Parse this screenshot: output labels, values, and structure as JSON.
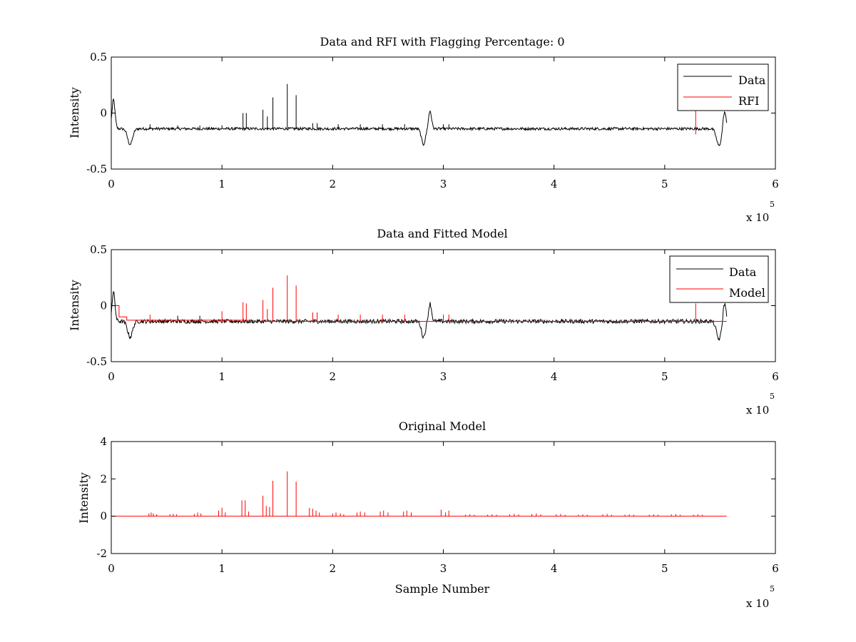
{
  "chart_data": [
    {
      "type": "line",
      "title": "Data and RFI with Flagging Percentage: 0",
      "xlabel": "",
      "ylabel": "Intensity",
      "xlim": [
        0,
        6
      ],
      "ylim": [
        -0.5,
        0.5
      ],
      "x_ticks": [
        "0",
        "1",
        "2",
        "3",
        "4",
        "5",
        "6"
      ],
      "y_ticks": [
        "-0.5",
        "0",
        "0.5"
      ],
      "x_multiplier": {
        "base": "x 10",
        "exponent": "5"
      },
      "legend": {
        "placement": "top-right",
        "entries": [
          {
            "label": "Data",
            "color": "#000000"
          },
          {
            "label": "RFI",
            "color": "#ff0000"
          }
        ]
      },
      "baseline": -0.14,
      "noise": 0.012,
      "x_end": 5.56,
      "dips": [
        {
          "x": 0.02,
          "y": 0.12,
          "width": 0.03
        },
        {
          "x": 0.17,
          "y": -0.28,
          "width": 0.05
        },
        {
          "x": 2.82,
          "y": -0.28,
          "width": 0.04
        },
        {
          "x": 2.88,
          "y": 0.02,
          "width": 0.03
        },
        {
          "x": 5.49,
          "y": -0.29,
          "width": 0.05
        },
        {
          "x": 5.54,
          "y": 0.02,
          "width": 0.03
        }
      ],
      "spikes": [
        {
          "x": 0.35,
          "y": -0.1
        },
        {
          "x": 0.6,
          "y": -0.11
        },
        {
          "x": 0.8,
          "y": -0.11
        },
        {
          "x": 1.0,
          "y": -0.11
        },
        {
          "x": 1.19,
          "y": 0.0
        },
        {
          "x": 1.22,
          "y": 0.0
        },
        {
          "x": 1.37,
          "y": 0.03
        },
        {
          "x": 1.41,
          "y": -0.03
        },
        {
          "x": 1.46,
          "y": 0.14
        },
        {
          "x": 1.59,
          "y": 0.26
        },
        {
          "x": 1.67,
          "y": 0.16
        },
        {
          "x": 1.82,
          "y": -0.09
        },
        {
          "x": 1.86,
          "y": -0.09
        },
        {
          "x": 2.05,
          "y": -0.1
        },
        {
          "x": 2.25,
          "y": -0.1
        },
        {
          "x": 2.45,
          "y": -0.1
        },
        {
          "x": 2.65,
          "y": -0.1
        },
        {
          "x": 3.0,
          "y": -0.1
        },
        {
          "x": 3.05,
          "y": -0.1
        }
      ],
      "rfi": [
        {
          "x": 5.28,
          "y_top": 0.02,
          "y_bottom": -0.19
        }
      ]
    },
    {
      "type": "line",
      "title": "Data and Fitted Model",
      "xlabel": "",
      "ylabel": "Intensity",
      "xlim": [
        0,
        6
      ],
      "ylim": [
        -0.5,
        0.5
      ],
      "x_ticks": [
        "0",
        "1",
        "2",
        "3",
        "4",
        "5",
        "6"
      ],
      "y_ticks": [
        "-0.5",
        "0",
        "0.5"
      ],
      "x_multiplier": {
        "base": "x 10",
        "exponent": "5"
      },
      "legend": {
        "placement": "top-right",
        "entries": [
          {
            "label": "Data",
            "color": "#000000"
          },
          {
            "label": "Model",
            "color": "#ff0000"
          }
        ]
      },
      "baseline": -0.14,
      "noise": 0.018,
      "x_end": 5.56,
      "dips": [
        {
          "x": 0.02,
          "y": 0.12,
          "width": 0.03
        },
        {
          "x": 0.17,
          "y": -0.28,
          "width": 0.05
        },
        {
          "x": 2.82,
          "y": -0.28,
          "width": 0.04
        },
        {
          "x": 2.88,
          "y": 0.02,
          "width": 0.03
        },
        {
          "x": 5.49,
          "y": -0.3,
          "width": 0.05
        },
        {
          "x": 5.54,
          "y": 0.03,
          "width": 0.03
        }
      ],
      "spikes": [
        {
          "x": 0.35,
          "y": -0.08
        },
        {
          "x": 0.6,
          "y": -0.09
        },
        {
          "x": 0.8,
          "y": -0.09
        },
        {
          "x": 1.0,
          "y": -0.05
        },
        {
          "x": 1.19,
          "y": 0.03
        },
        {
          "x": 1.22,
          "y": 0.02
        },
        {
          "x": 1.37,
          "y": 0.05
        },
        {
          "x": 1.41,
          "y": -0.03
        },
        {
          "x": 1.46,
          "y": 0.16
        },
        {
          "x": 1.59,
          "y": 0.27
        },
        {
          "x": 1.67,
          "y": 0.18
        },
        {
          "x": 1.82,
          "y": -0.06
        },
        {
          "x": 1.86,
          "y": -0.06
        },
        {
          "x": 2.05,
          "y": -0.08
        },
        {
          "x": 2.25,
          "y": -0.08
        },
        {
          "x": 2.45,
          "y": -0.08
        },
        {
          "x": 2.65,
          "y": -0.08
        },
        {
          "x": 3.0,
          "y": -0.08
        },
        {
          "x": 3.05,
          "y": -0.08
        },
        {
          "x": 5.28,
          "y": 0.02
        }
      ],
      "model_steps": [
        {
          "x0": 0.0,
          "x1": 0.07,
          "y": 0.0
        },
        {
          "x0": 0.07,
          "x1": 0.14,
          "y": -0.1
        },
        {
          "x0": 0.14,
          "x1": 1.2,
          "y": -0.13
        },
        {
          "x0": 1.2,
          "x1": 2.0,
          "y": -0.14
        },
        {
          "x0": 2.0,
          "x1": 5.56,
          "y": -0.14
        }
      ]
    },
    {
      "type": "line",
      "title": "Original Model",
      "xlabel": "Sample Number",
      "ylabel": "Intensity",
      "xlim": [
        0,
        6
      ],
      "ylim": [
        -2,
        4
      ],
      "x_ticks": [
        "0",
        "1",
        "2",
        "3",
        "4",
        "5",
        "6"
      ],
      "y_ticks": [
        "-2",
        "0",
        "2",
        "4"
      ],
      "x_multiplier": {
        "base": "x 10",
        "exponent": "5"
      },
      "x_end": 5.56,
      "baseline": 0,
      "spikes": [
        {
          "x": 0.34,
          "y": 0.15
        },
        {
          "x": 0.36,
          "y": 0.2
        },
        {
          "x": 0.38,
          "y": 0.15
        },
        {
          "x": 0.41,
          "y": 0.1
        },
        {
          "x": 0.53,
          "y": 0.1
        },
        {
          "x": 0.56,
          "y": 0.12
        },
        {
          "x": 0.59,
          "y": 0.1
        },
        {
          "x": 0.75,
          "y": 0.12
        },
        {
          "x": 0.78,
          "y": 0.2
        },
        {
          "x": 0.81,
          "y": 0.15
        },
        {
          "x": 0.97,
          "y": 0.3
        },
        {
          "x": 1.0,
          "y": 0.45
        },
        {
          "x": 1.03,
          "y": 0.2
        },
        {
          "x": 1.18,
          "y": 0.85
        },
        {
          "x": 1.21,
          "y": 0.85
        },
        {
          "x": 1.24,
          "y": 0.25
        },
        {
          "x": 1.37,
          "y": 1.1
        },
        {
          "x": 1.4,
          "y": 0.55
        },
        {
          "x": 1.43,
          "y": 0.5
        },
        {
          "x": 1.46,
          "y": 1.9
        },
        {
          "x": 1.59,
          "y": 2.4
        },
        {
          "x": 1.67,
          "y": 1.85
        },
        {
          "x": 1.79,
          "y": 0.45
        },
        {
          "x": 1.82,
          "y": 0.4
        },
        {
          "x": 1.85,
          "y": 0.3
        },
        {
          "x": 1.88,
          "y": 0.2
        },
        {
          "x": 2.0,
          "y": 0.15
        },
        {
          "x": 2.03,
          "y": 0.2
        },
        {
          "x": 2.07,
          "y": 0.15
        },
        {
          "x": 2.1,
          "y": 0.1
        },
        {
          "x": 2.22,
          "y": 0.2
        },
        {
          "x": 2.25,
          "y": 0.25
        },
        {
          "x": 2.29,
          "y": 0.2
        },
        {
          "x": 2.43,
          "y": 0.25
        },
        {
          "x": 2.46,
          "y": 0.3
        },
        {
          "x": 2.5,
          "y": 0.2
        },
        {
          "x": 2.64,
          "y": 0.25
        },
        {
          "x": 2.67,
          "y": 0.3
        },
        {
          "x": 2.71,
          "y": 0.2
        },
        {
          "x": 2.98,
          "y": 0.35
        },
        {
          "x": 3.02,
          "y": 0.2
        },
        {
          "x": 3.05,
          "y": 0.3
        },
        {
          "x": 3.2,
          "y": 0.08
        },
        {
          "x": 3.24,
          "y": 0.1
        },
        {
          "x": 3.28,
          "y": 0.08
        },
        {
          "x": 3.4,
          "y": 0.08
        },
        {
          "x": 3.44,
          "y": 0.1
        },
        {
          "x": 3.48,
          "y": 0.08
        },
        {
          "x": 3.6,
          "y": 0.1
        },
        {
          "x": 3.64,
          "y": 0.12
        },
        {
          "x": 3.68,
          "y": 0.1
        },
        {
          "x": 3.8,
          "y": 0.12
        },
        {
          "x": 3.84,
          "y": 0.15
        },
        {
          "x": 3.88,
          "y": 0.1
        },
        {
          "x": 4.02,
          "y": 0.1
        },
        {
          "x": 4.06,
          "y": 0.12
        },
        {
          "x": 4.1,
          "y": 0.08
        },
        {
          "x": 4.22,
          "y": 0.08
        },
        {
          "x": 4.26,
          "y": 0.1
        },
        {
          "x": 4.3,
          "y": 0.08
        },
        {
          "x": 4.44,
          "y": 0.1
        },
        {
          "x": 4.48,
          "y": 0.12
        },
        {
          "x": 4.52,
          "y": 0.08
        },
        {
          "x": 4.64,
          "y": 0.08
        },
        {
          "x": 4.68,
          "y": 0.1
        },
        {
          "x": 4.72,
          "y": 0.08
        },
        {
          "x": 4.86,
          "y": 0.08
        },
        {
          "x": 4.9,
          "y": 0.1
        },
        {
          "x": 4.94,
          "y": 0.08
        },
        {
          "x": 5.06,
          "y": 0.1
        },
        {
          "x": 5.1,
          "y": 0.12
        },
        {
          "x": 5.14,
          "y": 0.08
        },
        {
          "x": 5.26,
          "y": 0.08
        },
        {
          "x": 5.3,
          "y": 0.1
        },
        {
          "x": 5.34,
          "y": 0.08
        }
      ]
    }
  ]
}
